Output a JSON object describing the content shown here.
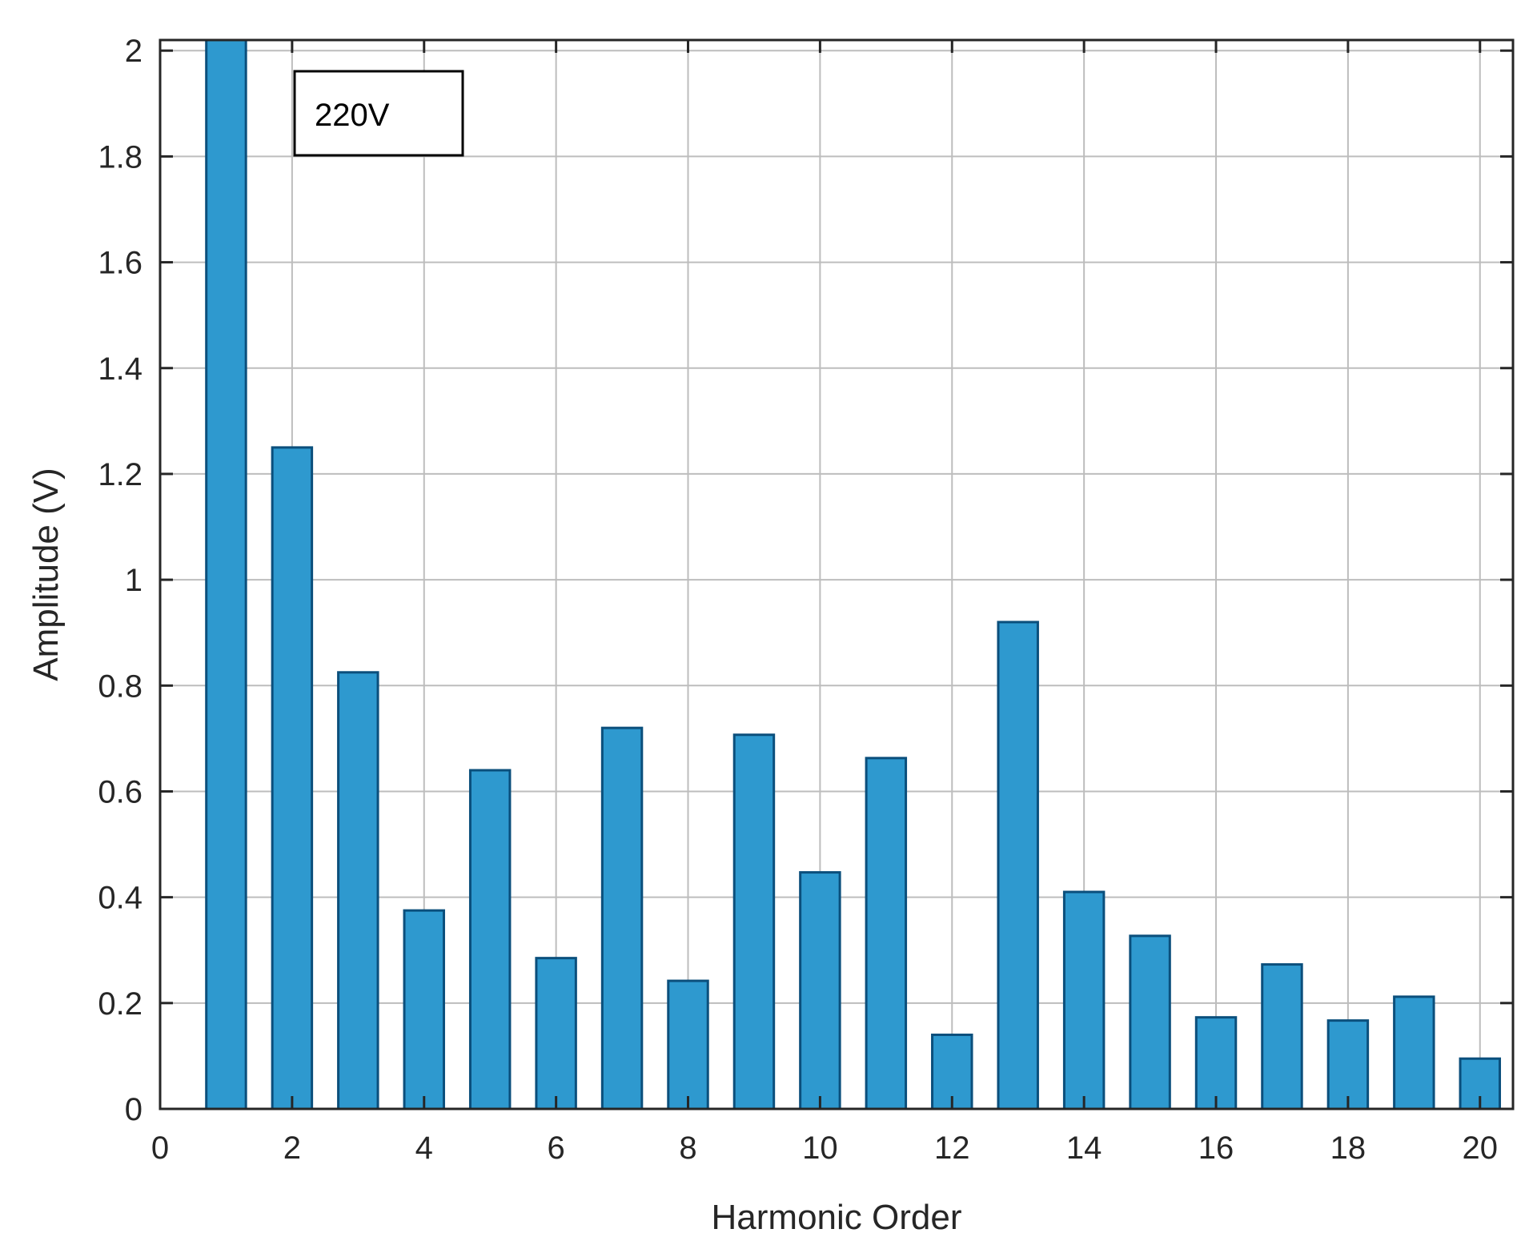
{
  "chart_data": {
    "type": "bar",
    "title": "",
    "xlabel": "Harmonic Order",
    "ylabel": "Amplitude (V)",
    "x": [
      1,
      2,
      3,
      4,
      5,
      6,
      7,
      8,
      9,
      10,
      11,
      12,
      13,
      14,
      15,
      16,
      17,
      18,
      19,
      20
    ],
    "values": [
      2.02,
      1.25,
      0.825,
      0.375,
      0.64,
      0.285,
      0.72,
      0.242,
      0.707,
      0.447,
      0.663,
      0.14,
      0.92,
      0.41,
      0.327,
      0.173,
      0.273,
      0.167,
      0.212,
      0.095
    ],
    "xlim": [
      0,
      20.5
    ],
    "ylim": [
      0,
      2.02
    ],
    "xticks": [
      0,
      2,
      4,
      6,
      8,
      10,
      12,
      14,
      16,
      18,
      20
    ],
    "xtick_labels": [
      "0",
      "2",
      "4",
      "6",
      "8",
      "10",
      "12",
      "14",
      "16",
      "18",
      "20"
    ],
    "yticks": [
      0,
      0.2,
      0.4,
      0.6,
      0.8,
      1,
      1.2,
      1.4,
      1.6,
      1.8,
      2
    ],
    "ytick_labels": [
      "0",
      "0.2",
      "0.4",
      "0.6",
      "0.8",
      "1",
      "1.2",
      "1.4",
      "1.6",
      "1.8",
      "2"
    ],
    "grid": true,
    "bar_color": "#2e99cf",
    "bar_edge_color": "#0b4f7c",
    "annotation": "220V"
  }
}
